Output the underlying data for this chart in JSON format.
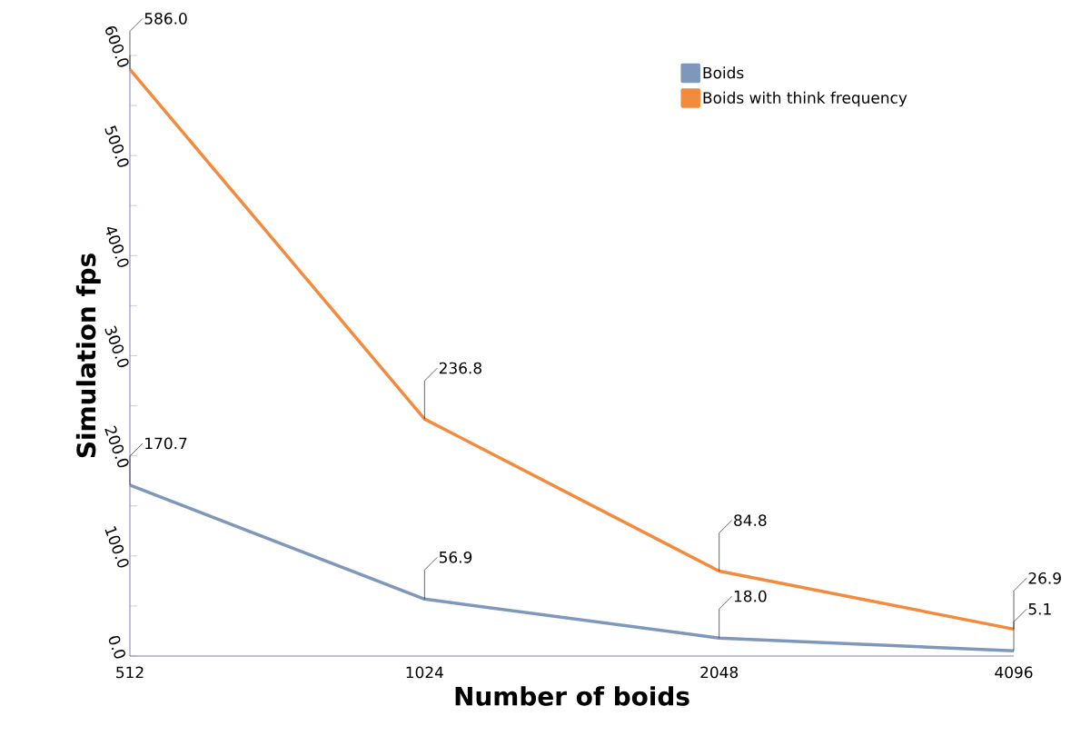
{
  "chart_data": {
    "type": "line",
    "xlabel": "Number of boids",
    "ylabel": "Simulation fps",
    "categories": [
      "512",
      "1024",
      "2048",
      "4096"
    ],
    "series": [
      {
        "name": "Boids",
        "color": "#7f97bb",
        "values": [
          170.7,
          56.9,
          18.0,
          5.1
        ],
        "value_labels": [
          "170.7",
          "56.9",
          "18.0",
          "5.1"
        ]
      },
      {
        "name": "Boids with think frequency",
        "color": "#f28b3d",
        "values": [
          586.0,
          236.8,
          84.8,
          26.9
        ],
        "value_labels": [
          "586.0",
          "236.8",
          "84.8",
          "26.9"
        ]
      }
    ],
    "ylim": [
      0,
      600
    ],
    "yticks": [
      {
        "value": 0,
        "label": "0.0"
      },
      {
        "value": 100,
        "label": "100.0"
      },
      {
        "value": 200,
        "label": "200.0"
      },
      {
        "value": 300,
        "label": "300.0"
      },
      {
        "value": 400,
        "label": "400.0"
      },
      {
        "value": 500,
        "label": "500.0"
      },
      {
        "value": 600,
        "label": "600.0"
      }
    ],
    "grid": false,
    "legend": "top right",
    "marker": "none",
    "line_style": "solid"
  }
}
